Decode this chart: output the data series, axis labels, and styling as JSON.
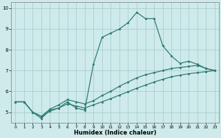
{
  "xlabel": "Humidex (Indice chaleur)",
  "bg_color": "#ceeaea",
  "grid_color": "#aacece",
  "line_color": "#2d7b6e",
  "xlim": [
    -0.5,
    23.5
  ],
  "ylim": [
    4.5,
    10.3
  ],
  "yticks": [
    5,
    6,
    7,
    8,
    9,
    10
  ],
  "xticks": [
    0,
    1,
    2,
    3,
    4,
    5,
    6,
    7,
    8,
    9,
    10,
    11,
    12,
    13,
    14,
    15,
    16,
    17,
    18,
    19,
    20,
    21,
    22,
    23
  ],
  "line1_x": [
    0,
    1,
    2,
    3,
    4,
    5,
    6,
    7,
    8,
    9,
    10,
    11,
    12,
    13,
    14,
    15,
    16,
    17,
    18,
    19,
    20,
    21,
    22,
    23
  ],
  "line1_y": [
    5.5,
    5.5,
    5.0,
    4.7,
    5.1,
    5.2,
    5.5,
    5.2,
    5.1,
    7.3,
    8.6,
    8.8,
    9.0,
    9.3,
    9.8,
    9.5,
    9.5,
    8.2,
    7.7,
    7.35,
    7.45,
    7.3,
    7.1,
    7.0
  ],
  "line2_x": [
    0,
    1,
    2,
    3,
    4,
    5,
    6,
    7,
    8,
    9,
    10,
    11,
    12,
    13,
    14,
    15,
    16,
    17,
    18,
    19,
    20,
    21,
    22,
    23
  ],
  "line2_y": [
    5.5,
    5.5,
    5.0,
    4.8,
    5.15,
    5.35,
    5.6,
    5.5,
    5.4,
    5.55,
    5.8,
    6.0,
    6.25,
    6.45,
    6.65,
    6.8,
    6.9,
    7.0,
    7.1,
    7.15,
    7.2,
    7.25,
    7.1,
    7.0
  ],
  "line3_x": [
    0,
    1,
    2,
    3,
    4,
    5,
    6,
    7,
    8,
    9,
    10,
    11,
    12,
    13,
    14,
    15,
    16,
    17,
    18,
    19,
    20,
    21,
    22,
    23
  ],
  "line3_y": [
    5.5,
    5.5,
    5.0,
    4.8,
    5.05,
    5.2,
    5.4,
    5.3,
    5.2,
    5.35,
    5.5,
    5.65,
    5.82,
    5.98,
    6.15,
    6.3,
    6.45,
    6.58,
    6.7,
    6.78,
    6.85,
    6.9,
    6.95,
    7.0
  ]
}
